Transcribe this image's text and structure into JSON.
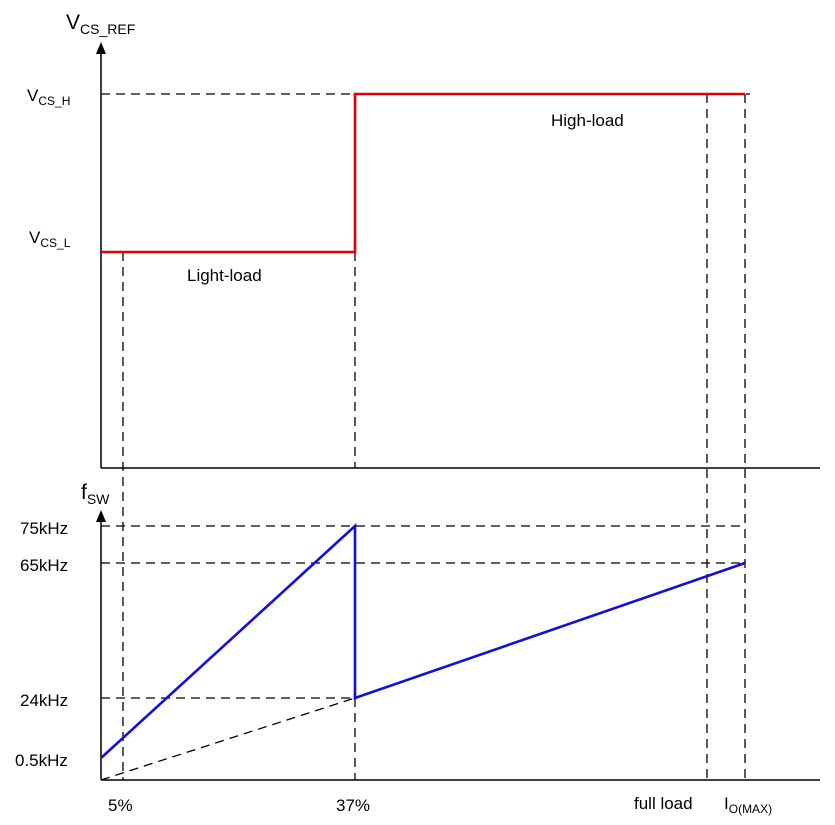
{
  "chart_data": [
    {
      "type": "line",
      "panel": "top",
      "ylabel": {
        "main": "V",
        "sub": "CS_REF"
      },
      "yticks": [
        {
          "main": "V",
          "sub": "CS_H"
        },
        {
          "main": "V",
          "sub": "CS_L"
        }
      ],
      "series": [
        {
          "color": "#e00000",
          "points": [
            {
              "x": 0,
              "y": "V_CS_L"
            },
            {
              "x": 37,
              "y": "V_CS_L"
            },
            {
              "x": 37,
              "y": "V_CS_H"
            },
            {
              "x": "I_O(MAX)",
              "y": "V_CS_H"
            }
          ]
        }
      ],
      "annotations": [
        "Light-load",
        "High-load"
      ]
    },
    {
      "type": "line",
      "panel": "bottom",
      "ylabel": {
        "main": "f",
        "sub": "SW"
      },
      "yticks": [
        "75kHz",
        "65kHz",
        "24kHz",
        "0.5kHz"
      ],
      "xticks": [
        "5%",
        "37%"
      ],
      "xlabels": {
        "full_load": "full load",
        "i_o_max": {
          "main": "I",
          "sub": "O(MAX)"
        }
      },
      "series": [
        {
          "color": "#1010dd",
          "points": [
            {
              "x": 0,
              "y": 0.5
            },
            {
              "x": 37,
              "y": 75
            },
            {
              "x": 37,
              "y": 24
            },
            {
              "x": "I_O(MAX)",
              "y": 65
            }
          ]
        }
      ]
    }
  ]
}
